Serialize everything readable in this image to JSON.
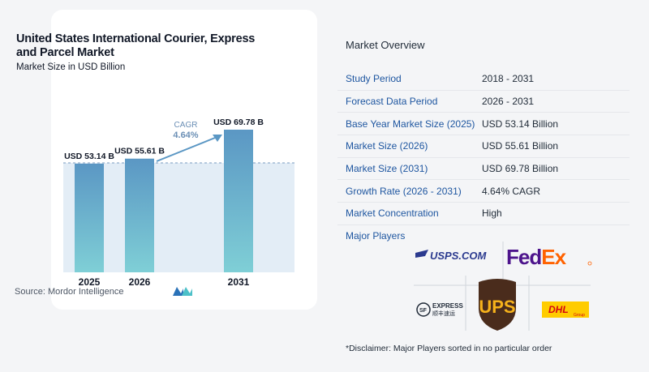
{
  "chart": {
    "title": "United States International Courier, Express and Parcel Market",
    "subtitle": "Market Size in USD Billion",
    "source": "Source:  Mordor Intelligence",
    "cagr_label": "CAGR",
    "cagr_value": "4.64%"
  },
  "chart_data": {
    "type": "bar",
    "title": "United States International Courier, Express and Parcel Market",
    "subtitle": "Market Size in USD Billion",
    "categories": [
      "2025",
      "2026",
      "2031"
    ],
    "values": [
      53.14,
      55.61,
      69.78
    ],
    "data_labels": [
      "USD 53.14 B",
      "USD 55.61 B",
      "USD 69.78 B"
    ],
    "annotation": {
      "text": "CAGR",
      "value": "4.64%"
    },
    "grid": false
  },
  "overview": {
    "title": "Market Overview",
    "rows": [
      {
        "label": "Study Period",
        "value": "2018 - 2031"
      },
      {
        "label": "Forecast Data Period",
        "value": "2026 - 2031"
      },
      {
        "label": "Base Year Market Size (2025)",
        "value": "USD 53.14 Billion"
      },
      {
        "label": "Market Size (2026)",
        "value": "USD 55.61 Billion"
      },
      {
        "label": "Market Size (2031)",
        "value": "USD 69.78 Billion"
      },
      {
        "label": "Growth Rate (2026 - 2031)",
        "value": "4.64% CAGR"
      },
      {
        "label": "Market Concentration",
        "value": "High"
      }
    ]
  },
  "players": {
    "title": "Major Players",
    "logos": [
      "USPS.COM",
      "FedEx",
      "SF EXPRESS",
      "UPS",
      "DHL"
    ],
    "disclaimer": "*Disclaimer: Major Players sorted in no particular order"
  },
  "colors": {
    "bar_top": "#5b97c4",
    "bar_bottom": "#7fcfd6",
    "bg_band": "#e3edf6",
    "link_blue": "#1e56a0"
  }
}
